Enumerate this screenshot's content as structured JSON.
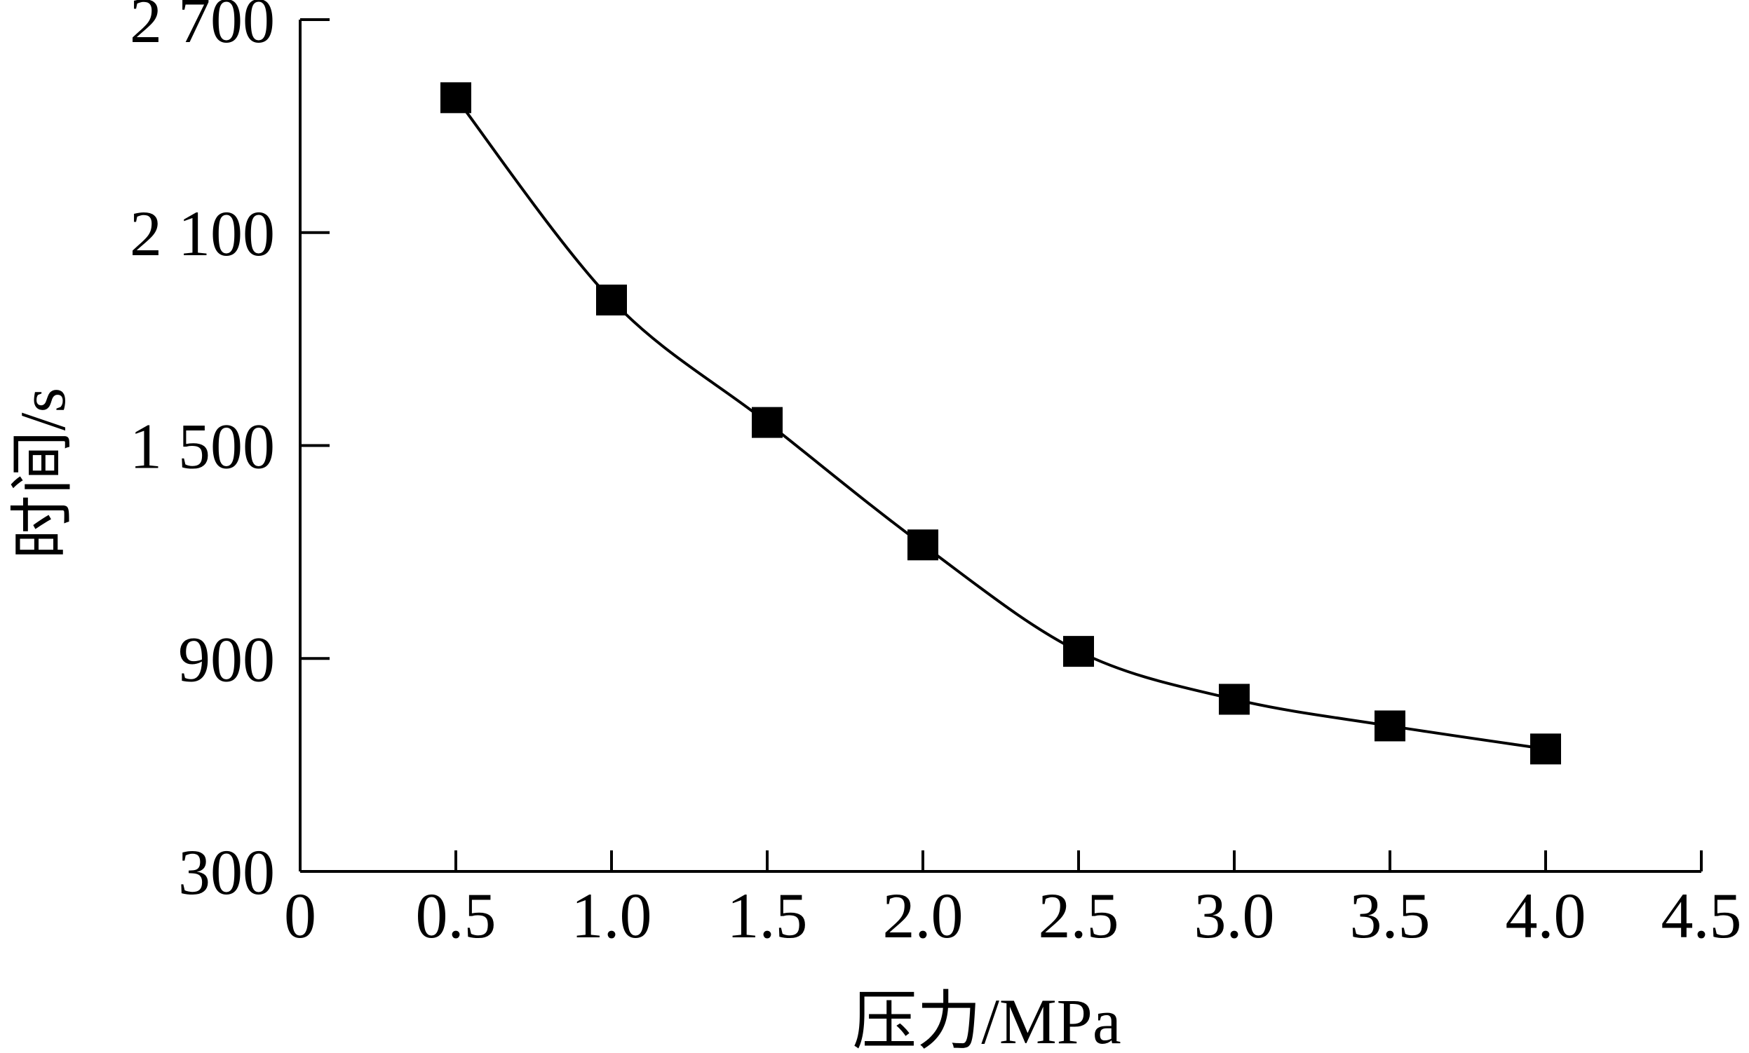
{
  "chart_data": {
    "type": "line",
    "title": "",
    "xlabel": "压力/MPa",
    "ylabel": "时间/s",
    "xlim": [
      0,
      4.5
    ],
    "ylim": [
      300,
      2700
    ],
    "x_ticks": [
      0,
      0.5,
      1.0,
      1.5,
      2.0,
      2.5,
      3.0,
      3.5,
      4.0,
      4.5
    ],
    "x_tick_labels": [
      "0",
      "0.5",
      "1.0",
      "1.5",
      "2.0",
      "2.5",
      "3.0",
      "3.5",
      "4.0",
      "4.5"
    ],
    "y_ticks": [
      300,
      900,
      1500,
      2100,
      2700
    ],
    "y_tick_labels": [
      "300",
      "900",
      "1 500",
      "2 100",
      "2 700"
    ],
    "grid": false,
    "legend": "none",
    "marker": "filled-square",
    "line_color": "#000000",
    "series": [
      {
        "x": [
          0.5,
          1.0,
          1.5,
          2.0,
          2.5,
          3.0,
          3.5,
          4.0
        ],
        "values": [
          2480,
          1910,
          1565,
          1220,
          920,
          785,
          710,
          645
        ]
      }
    ]
  }
}
